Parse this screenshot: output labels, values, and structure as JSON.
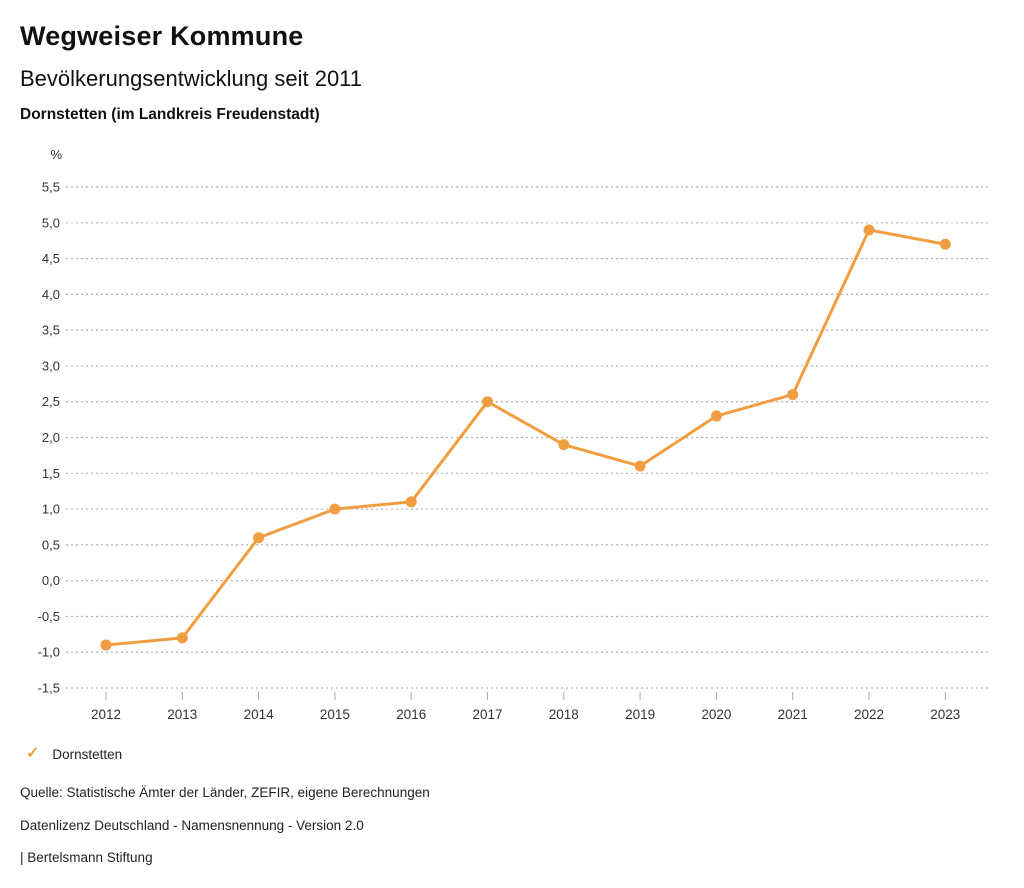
{
  "page": {
    "title": "Wegweiser Kommune",
    "subtitle": "Bevölkerungsentwicklung seit 2011",
    "location": "Dornstetten (im Landkreis Freudenstadt)"
  },
  "legend": {
    "check_icon": "✓",
    "label": "Dornstetten"
  },
  "footer": {
    "source": "Quelle: Statistische Ämter der Länder, ZEFIR, eigene Berechnungen",
    "license": "Datenlizenz Deutschland - Namensnennung - Version 2.0",
    "publisher": "| Bertelsmann Stiftung"
  },
  "colors": {
    "series": "#F19E42",
    "grid": "#b0b0b0",
    "tick": "#aaaaaa",
    "axis_text": "#333333"
  },
  "chart_data": {
    "type": "line",
    "title": "Bevölkerungsentwicklung seit 2011",
    "subtitle": "Dornstetten (im Landkreis Freudenstadt)",
    "unit": "%",
    "categories": [
      "2012",
      "2013",
      "2014",
      "2015",
      "2016",
      "2017",
      "2018",
      "2019",
      "2020",
      "2021",
      "2022",
      "2023"
    ],
    "series": [
      {
        "name": "Dornstetten",
        "values": [
          -0.9,
          -0.8,
          0.6,
          1.0,
          1.1,
          2.5,
          1.9,
          1.6,
          2.3,
          2.6,
          4.9,
          4.7
        ]
      }
    ],
    "ylim": [
      -1.5,
      5.5
    ],
    "ytick_step": 0.5,
    "ytick_labels": [
      "5,5",
      "5,0",
      "4,5",
      "4,0",
      "3,5",
      "3,0",
      "2,5",
      "2,0",
      "1,5",
      "1,0",
      "0,5",
      "0,0",
      "-0,5",
      "-1,0",
      "-1,5"
    ],
    "grid": "dotted-horizontal",
    "legend_position": "bottom-left"
  }
}
